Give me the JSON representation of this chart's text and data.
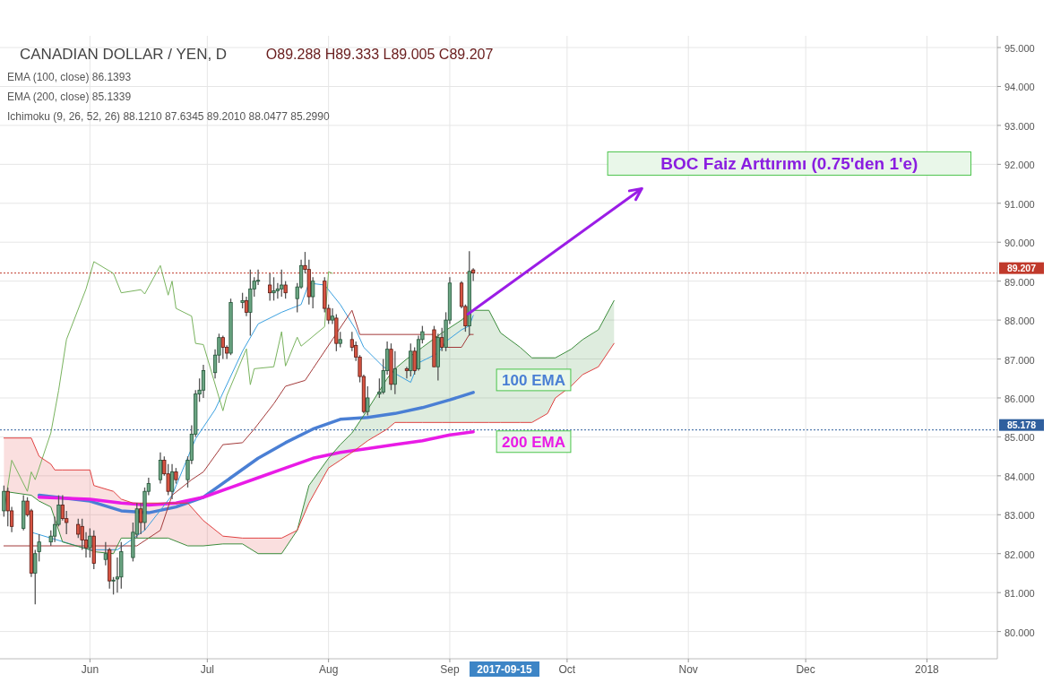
{
  "chart_data": {
    "type": "candlestick",
    "title": "CANADIAN DOLLAR / YEN, D",
    "x": [
      "2017-05-10",
      "2017-05-11",
      "2017-05-12",
      "2017-05-15",
      "2017-05-16",
      "2017-05-17",
      "2017-05-18",
      "2017-05-19",
      "2017-05-22",
      "2017-05-23",
      "2017-05-24",
      "2017-05-25",
      "2017-05-26",
      "2017-05-29",
      "2017-05-30",
      "2017-05-31",
      "2017-06-01",
      "2017-06-02",
      "2017-06-05",
      "2017-06-06",
      "2017-06-07",
      "2017-06-08",
      "2017-06-09",
      "2017-06-12",
      "2017-06-13",
      "2017-06-14",
      "2017-06-15",
      "2017-06-16",
      "2017-06-19",
      "2017-06-20",
      "2017-06-21",
      "2017-06-22",
      "2017-06-23",
      "2017-06-26",
      "2017-06-27",
      "2017-06-28",
      "2017-06-29",
      "2017-06-30",
      "2017-07-03",
      "2017-07-04",
      "2017-07-05",
      "2017-07-06",
      "2017-07-07",
      "2017-07-10",
      "2017-07-11",
      "2017-07-12",
      "2017-07-13",
      "2017-07-14",
      "2017-07-17",
      "2017-07-18",
      "2017-07-19",
      "2017-07-20",
      "2017-07-21",
      "2017-07-24",
      "2017-07-25",
      "2017-07-26",
      "2017-07-27",
      "2017-07-28",
      "2017-07-31",
      "2017-08-01",
      "2017-08-02",
      "2017-08-03",
      "2017-08-04",
      "2017-08-07",
      "2017-08-08",
      "2017-08-09",
      "2017-08-10",
      "2017-08-11",
      "2017-08-14",
      "2017-08-15",
      "2017-08-16",
      "2017-08-17",
      "2017-08-18",
      "2017-08-21",
      "2017-08-22",
      "2017-08-23",
      "2017-08-24",
      "2017-08-25",
      "2017-08-28",
      "2017-08-29",
      "2017-08-30",
      "2017-08-31",
      "2017-09-01",
      "2017-09-04",
      "2017-09-05",
      "2017-09-06",
      "2017-09-07"
    ],
    "ohlc": [
      [
        83.1,
        83.75,
        82.95,
        83.6
      ],
      [
        83.6,
        83.7,
        82.7,
        83.1
      ],
      [
        83.1,
        83.2,
        82.55,
        82.7
      ],
      [
        82.65,
        83.5,
        82.6,
        83.35
      ],
      [
        83.35,
        83.45,
        82.95,
        83.0
      ],
      [
        83.1,
        83.15,
        81.4,
        81.5
      ],
      [
        81.5,
        82.1,
        80.7,
        82.0
      ],
      [
        82.05,
        82.5,
        81.8,
        82.3
      ],
      [
        82.3,
        82.6,
        82.2,
        82.45
      ],
      [
        82.45,
        82.95,
        82.3,
        82.75
      ],
      [
        82.75,
        83.5,
        82.7,
        83.25
      ],
      [
        83.25,
        83.5,
        82.85,
        82.9
      ],
      [
        82.9,
        83.1,
        82.5,
        82.8
      ],
      [
        82.75,
        82.9,
        82.4,
        82.5
      ],
      [
        82.7,
        82.9,
        82.1,
        82.35
      ],
      [
        82.35,
        82.55,
        81.9,
        82.15
      ],
      [
        82.15,
        82.65,
        81.9,
        82.45
      ],
      [
        82.45,
        82.6,
        81.6,
        81.75
      ],
      [
        81.85,
        82.3,
        81.7,
        82.0
      ],
      [
        82.1,
        82.15,
        81.1,
        81.3
      ],
      [
        81.3,
        81.4,
        80.95,
        81.32
      ],
      [
        81.35,
        81.9,
        81.0,
        81.4
      ],
      [
        81.4,
        82.3,
        81.1,
        82.05
      ],
      [
        81.9,
        82.8,
        81.8,
        82.55
      ],
      [
        82.5,
        83.3,
        82.4,
        83.15
      ],
      [
        83.15,
        83.3,
        82.5,
        82.8
      ],
      [
        82.8,
        83.7,
        82.6,
        83.6
      ],
      [
        83.6,
        83.95,
        83.5,
        83.8
      ],
      [
        83.9,
        84.6,
        83.8,
        84.4
      ],
      [
        84.4,
        84.5,
        84.0,
        84.05
      ],
      [
        84.05,
        84.3,
        83.5,
        83.6
      ],
      [
        83.6,
        84.3,
        83.4,
        84.1
      ],
      [
        84.1,
        84.2,
        83.8,
        83.9
      ],
      [
        83.9,
        84.5,
        83.7,
        84.4
      ],
      [
        84.4,
        85.3,
        84.3,
        85.07
      ],
      [
        85.07,
        86.2,
        85.0,
        86.1
      ],
      [
        86.1,
        86.5,
        85.9,
        86.2
      ],
      [
        86.2,
        86.85,
        86.0,
        86.7
      ],
      [
        86.65,
        87.25,
        86.5,
        87.1
      ],
      [
        87.1,
        87.65,
        86.9,
        87.55
      ],
      [
        87.55,
        87.6,
        87.0,
        87.3
      ],
      [
        87.3,
        87.35,
        87.0,
        87.15
      ],
      [
        87.15,
        88.55,
        87.1,
        88.45
      ],
      [
        88.45,
        88.7,
        88.3,
        88.5
      ],
      [
        88.5,
        88.6,
        88.1,
        88.2
      ],
      [
        88.2,
        89.3,
        87.6,
        88.8
      ],
      [
        88.8,
        89.1,
        88.6,
        89.0
      ],
      [
        89.0,
        89.3,
        88.9,
        89.02
      ],
      [
        88.9,
        89.2,
        88.5,
        88.7
      ],
      [
        88.7,
        89.1,
        88.5,
        88.75
      ],
      [
        88.75,
        88.95,
        88.55,
        88.8
      ],
      [
        88.8,
        89.3,
        88.6,
        88.9
      ],
      [
        88.9,
        89.0,
        88.55,
        88.7
      ],
      [
        88.55,
        88.95,
        88.2,
        88.85
      ],
      [
        88.85,
        89.55,
        88.8,
        89.4
      ],
      [
        89.4,
        89.75,
        89.2,
        89.3
      ],
      [
        89.3,
        89.55,
        88.4,
        88.6
      ],
      [
        88.6,
        89.1,
        88.3,
        89.0
      ],
      [
        89.0,
        89.1,
        88.2,
        88.3
      ],
      [
        88.3,
        88.4,
        87.9,
        88.0
      ],
      [
        88.0,
        88.3,
        87.9,
        88.1
      ],
      [
        88.05,
        88.15,
        87.2,
        87.4
      ],
      [
        87.4,
        87.7,
        87.3,
        87.5
      ],
      [
        87.5,
        87.7,
        87.2,
        87.3
      ],
      [
        87.35,
        87.45,
        86.95,
        87.05
      ],
      [
        87.05,
        87.1,
        86.4,
        86.55
      ],
      [
        86.55,
        86.6,
        85.6,
        85.65
      ],
      [
        85.65,
        86.3,
        85.55,
        86.0
      ],
      [
        86.1,
        86.5,
        86.0,
        86.15
      ],
      [
        86.15,
        87.0,
        86.1,
        86.7
      ],
      [
        86.7,
        87.45,
        86.6,
        87.25
      ],
      [
        87.25,
        87.4,
        86.2,
        86.35
      ],
      [
        86.35,
        87.2,
        86.1,
        86.75
      ],
      [
        86.75,
        86.8,
        86.5,
        86.7
      ],
      [
        86.7,
        87.4,
        86.55,
        87.2
      ],
      [
        87.2,
        87.3,
        86.6,
        86.7
      ],
      [
        86.75,
        87.6,
        86.7,
        87.5
      ],
      [
        87.5,
        87.85,
        87.4,
        87.7
      ],
      [
        87.75,
        87.85,
        86.8,
        86.8
      ],
      [
        86.8,
        87.65,
        86.45,
        87.55
      ],
      [
        87.55,
        87.8,
        87.2,
        87.3
      ],
      [
        87.3,
        88.2,
        87.2,
        88.0
      ],
      [
        88.0,
        89.1,
        87.9,
        88.95
      ],
      [
        88.95,
        89.0,
        88.3,
        88.35
      ],
      [
        88.35,
        88.4,
        87.7,
        87.85
      ],
      [
        87.85,
        89.77,
        87.6,
        89.25
      ],
      [
        89.288,
        89.333,
        89.005,
        89.207
      ]
    ],
    "series": [
      {
        "name": "100 EMA",
        "type": "line",
        "color": "#4a7fd4",
        "x": [
          "2017-05-19",
          "2017-06-01",
          "2017-06-09",
          "2017-06-16",
          "2017-06-23",
          "2017-06-30",
          "2017-07-07",
          "2017-07-14",
          "2017-07-21",
          "2017-07-28",
          "2017-08-04",
          "2017-08-11",
          "2017-08-18",
          "2017-08-25",
          "2017-09-01",
          "2017-09-07"
        ],
        "values": [
          83.5,
          83.35,
          83.1,
          83.05,
          83.2,
          83.45,
          83.95,
          84.45,
          84.85,
          85.2,
          85.45,
          85.5,
          85.6,
          85.75,
          85.95,
          86.14
        ]
      },
      {
        "name": "200 EMA",
        "type": "line",
        "color": "#e91be6",
        "x": [
          "2017-05-19",
          "2017-06-01",
          "2017-06-09",
          "2017-06-16",
          "2017-06-23",
          "2017-06-30",
          "2017-07-07",
          "2017-07-14",
          "2017-07-21",
          "2017-07-28",
          "2017-08-04",
          "2017-08-11",
          "2017-08-18",
          "2017-08-25",
          "2017-09-01",
          "2017-09-07"
        ],
        "values": [
          83.45,
          83.4,
          83.3,
          83.25,
          83.3,
          83.45,
          83.7,
          83.95,
          84.2,
          84.45,
          84.6,
          84.7,
          84.8,
          84.9,
          85.05,
          85.13
        ]
      },
      {
        "type": "line",
        "color": "#3aa0e0",
        "x": [
          "2017-05-17",
          "2017-06-01",
          "2017-06-08",
          "2017-06-15",
          "2017-06-22",
          "2017-06-28",
          "2017-07-03",
          "2017-07-10",
          "2017-07-14",
          "2017-07-20",
          "2017-07-25",
          "2017-07-27",
          "2017-07-31",
          "2017-08-04",
          "2017-08-08",
          "2017-08-10",
          "2017-08-15",
          "2017-08-22",
          "2017-08-24",
          "2017-08-29",
          "2017-08-31",
          "2017-09-04",
          "2017-09-06",
          "2017-09-07"
        ],
        "values": [
          82.55,
          82.1,
          82.1,
          82.6,
          83.5,
          84.95,
          85.7,
          87.2,
          87.9,
          88.2,
          88.4,
          88.95,
          88.9,
          88.4,
          87.75,
          87.3,
          86.8,
          86.4,
          86.9,
          87.15,
          87.45,
          87.75,
          87.85,
          88.12
        ]
      },
      {
        "type": "line",
        "color": "#a33a3a",
        "x": [
          "2017-05-10",
          "2017-06-13",
          "2017-06-19",
          "2017-06-22",
          "2017-06-27",
          "2017-06-30",
          "2017-07-05",
          "2017-07-10",
          "2017-07-13",
          "2017-07-18",
          "2017-07-21",
          "2017-07-26",
          "2017-07-28",
          "2017-08-02",
          "2017-08-07",
          "2017-08-09",
          "2017-08-28",
          "2017-08-31",
          "2017-09-04",
          "2017-09-06",
          "2017-09-07"
        ],
        "values": [
          82.2,
          82.2,
          82.6,
          83.5,
          83.9,
          84.1,
          84.8,
          84.85,
          85.2,
          85.85,
          86.3,
          86.45,
          86.75,
          87.5,
          88.25,
          87.63,
          87.63,
          87.3,
          87.3,
          87.63,
          87.63
        ]
      },
      {
        "type": "line",
        "color": "#79b35e",
        "x": [
          "2017-05-10",
          "2017-05-12",
          "2017-05-16",
          "2017-05-17",
          "2017-05-18",
          "2017-05-22",
          "2017-05-24",
          "2017-05-26",
          "2017-05-31",
          "2017-06-02",
          "2017-06-07",
          "2017-06-09",
          "2017-06-14",
          "2017-06-15",
          "2017-06-19",
          "2017-06-21",
          "2017-06-22",
          "2017-06-23",
          "2017-06-27",
          "2017-06-28",
          "2017-06-30",
          "2017-07-05",
          "2017-07-06",
          "2017-07-11",
          "2017-07-12",
          "2017-07-13",
          "2017-07-18",
          "2017-07-20",
          "2017-07-21",
          "2017-07-24",
          "2017-07-25",
          "2017-07-31",
          "2017-08-01",
          "2017-08-02"
        ],
        "values": [
          83.06,
          84.4,
          83.6,
          84.1,
          83.9,
          85.1,
          86.2,
          87.5,
          88.8,
          89.5,
          89.2,
          88.7,
          88.78,
          88.67,
          89.4,
          88.64,
          89.0,
          88.3,
          88.1,
          87.4,
          87.37,
          85.67,
          86.06,
          87.26,
          86.34,
          86.75,
          86.8,
          87.7,
          86.82,
          87.56,
          87.33,
          87.83,
          89.24,
          89.2
        ]
      },
      {
        "type": "line",
        "color": "#3c8c3c",
        "x": [
          "2017-05-10",
          "2017-05-17",
          "2017-05-19",
          "2017-05-22",
          "2017-05-23",
          "2017-05-25",
          "2017-06-01",
          "2017-06-02",
          "2017-06-07",
          "2017-06-09",
          "2017-06-12",
          "2017-06-21",
          "2017-06-26",
          "2017-06-30",
          "2017-07-05",
          "2017-07-10",
          "2017-07-14",
          "2017-07-20",
          "2017-07-24",
          "2017-07-27",
          "2017-08-01",
          "2017-08-04",
          "2017-08-07",
          "2017-08-11",
          "2017-08-16",
          "2017-08-18",
          "2017-08-21",
          "2017-08-25",
          "2017-08-30",
          "2017-09-04",
          "2017-09-07",
          "2017-09-11",
          "2017-09-14",
          "2017-09-19",
          "2017-09-22",
          "2017-09-26",
          "2017-09-28",
          "2017-10-02",
          "2017-10-05",
          "2017-10-09",
          "2017-10-13"
        ],
        "values": [
          83.6,
          83.5,
          83.35,
          83.2,
          82.9,
          82.3,
          82.1,
          82.05,
          82.0,
          82.4,
          82.4,
          82.4,
          82.2,
          82.2,
          82.25,
          82.25,
          82.0,
          82.0,
          82.6,
          83.75,
          84.45,
          84.8,
          85.1,
          85.7,
          86.5,
          86.75,
          87.0,
          87.3,
          87.67,
          88.0,
          88.25,
          88.25,
          87.67,
          87.3,
          87.03,
          87.03,
          87.03,
          87.25,
          87.5,
          87.75,
          88.5
        ],
        "upper": [
          null,
          null,
          null,
          null,
          null,
          null,
          null,
          null,
          null,
          null,
          null,
          null,
          null,
          null,
          null,
          null,
          null,
          null,
          82.6,
          83.75,
          84.45,
          84.8,
          85.1,
          85.7,
          86.5,
          86.75,
          87.0,
          87.3,
          87.67,
          88.0,
          88.25,
          88.25,
          87.67,
          87.3,
          87.03,
          87.03,
          87.03,
          87.25,
          87.5,
          87.75,
          88.5
        ],
        "lower": [
          null,
          null,
          null,
          null,
          null,
          null,
          null,
          null,
          null,
          null,
          null,
          null,
          null,
          null,
          null,
          null,
          null,
          null,
          82.6,
          83.3,
          84.2,
          84.4,
          84.6,
          84.9,
          85.2,
          85.37,
          85.37,
          85.37,
          85.37,
          85.37,
          85.37,
          85.37,
          85.37,
          85.37,
          85.37,
          85.6,
          86.0,
          86.3,
          86.6,
          86.8,
          87.4
        ]
      },
      {
        "type": "line",
        "color": "#e04040",
        "x": [
          "2017-05-10",
          "2017-05-17",
          "2017-05-19",
          "2017-05-22",
          "2017-05-23",
          "2017-05-25",
          "2017-06-01",
          "2017-06-02",
          "2017-06-07",
          "2017-06-09",
          "2017-06-12",
          "2017-06-21",
          "2017-06-26",
          "2017-06-30",
          "2017-07-05",
          "2017-07-10",
          "2017-07-14",
          "2017-07-20",
          "2017-07-24",
          "2017-07-27",
          "2017-08-01",
          "2017-08-04",
          "2017-08-07",
          "2017-08-11",
          "2017-08-16",
          "2017-08-18",
          "2017-08-21",
          "2017-08-25",
          "2017-08-30",
          "2017-09-04",
          "2017-09-07",
          "2017-09-11",
          "2017-09-14",
          "2017-09-19",
          "2017-09-22",
          "2017-09-26",
          "2017-09-28",
          "2017-10-02",
          "2017-10-05",
          "2017-10-09",
          "2017-10-13"
        ],
        "values": [
          84.97,
          84.97,
          84.5,
          84.3,
          84.15,
          84.15,
          84.15,
          83.75,
          83.6,
          83.4,
          83.3,
          83.3,
          83.3,
          82.85,
          82.45,
          82.4,
          82.4,
          82.4,
          82.6,
          83.3,
          84.2,
          84.4,
          84.6,
          84.9,
          85.2,
          85.37,
          85.37,
          85.37,
          85.37,
          85.37,
          85.37,
          85.37,
          85.37,
          85.37,
          85.37,
          85.6,
          86.0,
          86.3,
          86.6,
          86.8,
          87.4
        ],
        "upper": [
          84.97,
          84.97,
          84.5,
          84.3,
          84.15,
          84.15,
          84.15,
          83.75,
          83.6,
          83.4,
          83.3,
          83.3,
          83.3,
          82.85,
          82.45,
          82.4,
          82.4,
          82.4,
          82.6,
          null,
          null,
          null,
          null,
          null,
          null,
          null,
          null,
          null,
          null,
          null,
          null,
          null,
          null,
          null,
          null,
          null,
          null,
          null,
          null,
          null,
          null
        ],
        "lower": [
          83.6,
          83.5,
          83.35,
          83.2,
          82.9,
          82.3,
          82.1,
          82.05,
          82.0,
          82.4,
          82.4,
          82.4,
          82.2,
          82.2,
          82.25,
          82.25,
          82.0,
          82.0,
          82.6,
          null,
          null,
          null,
          null,
          null,
          null,
          null,
          null,
          null,
          null,
          null,
          null,
          null,
          null,
          null,
          null,
          null,
          null,
          null,
          null,
          null,
          null
        ]
      }
    ],
    "xlim": [
      "2017-05-09",
      "2018-01-19"
    ],
    "xticks": [
      {
        "value": "2017-06-01",
        "label": "Jun"
      },
      {
        "value": "2017-07-01",
        "label": "Jul"
      },
      {
        "value": "2017-08-01",
        "label": "Aug"
      },
      {
        "value": "2017-09-01",
        "label": "Sep"
      },
      {
        "value": "2017-10-01",
        "label": "Oct"
      },
      {
        "value": "2017-11-01",
        "label": "Nov"
      },
      {
        "value": "2017-12-01",
        "label": "Dec"
      },
      {
        "value": "2018-01-01",
        "label": "2018"
      }
    ],
    "ylim": [
      79.3,
      95.3
    ],
    "yticks": [
      {
        "value": 80,
        "label": "80.000"
      },
      {
        "value": 81,
        "label": "81.000"
      },
      {
        "value": 82,
        "label": "82.000"
      },
      {
        "value": 83,
        "label": "83.000"
      },
      {
        "value": 84,
        "label": "84.000"
      },
      {
        "value": 85,
        "label": "85.000"
      },
      {
        "value": 86,
        "label": "86.000"
      },
      {
        "value": 87,
        "label": "87.000"
      },
      {
        "value": 88,
        "label": "88.000"
      },
      {
        "value": 89,
        "label": "89.000"
      },
      {
        "value": 90,
        "label": "90.000"
      },
      {
        "value": 91,
        "label": "91.000"
      },
      {
        "value": 92,
        "label": "92.000"
      },
      {
        "value": 93,
        "label": "93.000"
      },
      {
        "value": 94,
        "label": "94.000"
      },
      {
        "value": 95,
        "label": "95.000"
      }
    ],
    "grid": true,
    "ref_lines": [
      {
        "axis": "y",
        "value": 89.207,
        "label": "89.207",
        "color": "#c0392b",
        "line_style": "dotted"
      },
      {
        "axis": "y",
        "value": 85.178,
        "label": "85.178",
        "color": "#2f5f9e",
        "line_style": "dotted"
      }
    ],
    "annotations": [
      "BOC Faiz Arttırımı (0.75'den 1'e)",
      "O89.288 H89.333 L89.005 C89.207",
      "EMA (100, close) 86.1393",
      "EMA (200, close) 85.1339",
      "Ichimoku (9, 26, 52, 26) 88.1210 87.6345 89.2010 88.0477 85.2990",
      "2017-09-15"
    ]
  }
}
